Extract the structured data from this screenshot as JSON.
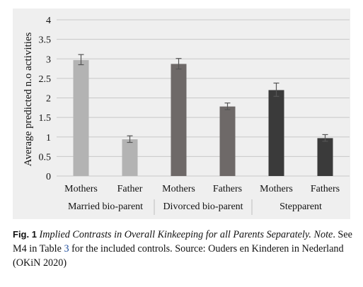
{
  "chart_data": {
    "type": "bar",
    "ylabel": "Average predicted n.o activities",
    "xlabel": "",
    "ylim": [
      0,
      4
    ],
    "yticks": [
      "0",
      "0.5",
      "1",
      "1.5",
      "2",
      "2.5",
      "3",
      "3.5",
      "4"
    ],
    "grid": true,
    "legend": "none",
    "groups": [
      {
        "name": "Married bio-parent",
        "color": "#b3b3b3",
        "bars": [
          {
            "label": "Mothers",
            "value": 2.97,
            "err": [
              2.85,
              3.11
            ]
          },
          {
            "label": "Father",
            "value": 0.94,
            "err": [
              0.86,
              1.03
            ]
          }
        ]
      },
      {
        "name": "Divorced bio-parent",
        "color": "#6e6968",
        "bars": [
          {
            "label": "Mothers",
            "value": 2.87,
            "err": [
              2.74,
              3.01
            ]
          },
          {
            "label": "Fathers",
            "value": 1.78,
            "err": [
              1.7,
              1.87
            ]
          }
        ]
      },
      {
        "name": "Stepparent",
        "color": "#3a3a3a",
        "bars": [
          {
            "label": "Mothers",
            "value": 2.2,
            "err": [
              2.04,
              2.38
            ]
          },
          {
            "label": "Fathers",
            "value": 0.97,
            "err": [
              0.89,
              1.06
            ]
          }
        ]
      }
    ]
  },
  "caption": {
    "fig_label": "Fig. 1",
    "title_italic": "Implied Contrasts in Overall Kinkeeping for all Parents Separately.",
    "note_italic": "Note",
    "text_before_ref": ". See M4 in Table ",
    "table_ref": "3",
    "text_after_ref": " for the included controls. Source: Ouders en Kinderen in Nederland (OKiN 2020)"
  }
}
